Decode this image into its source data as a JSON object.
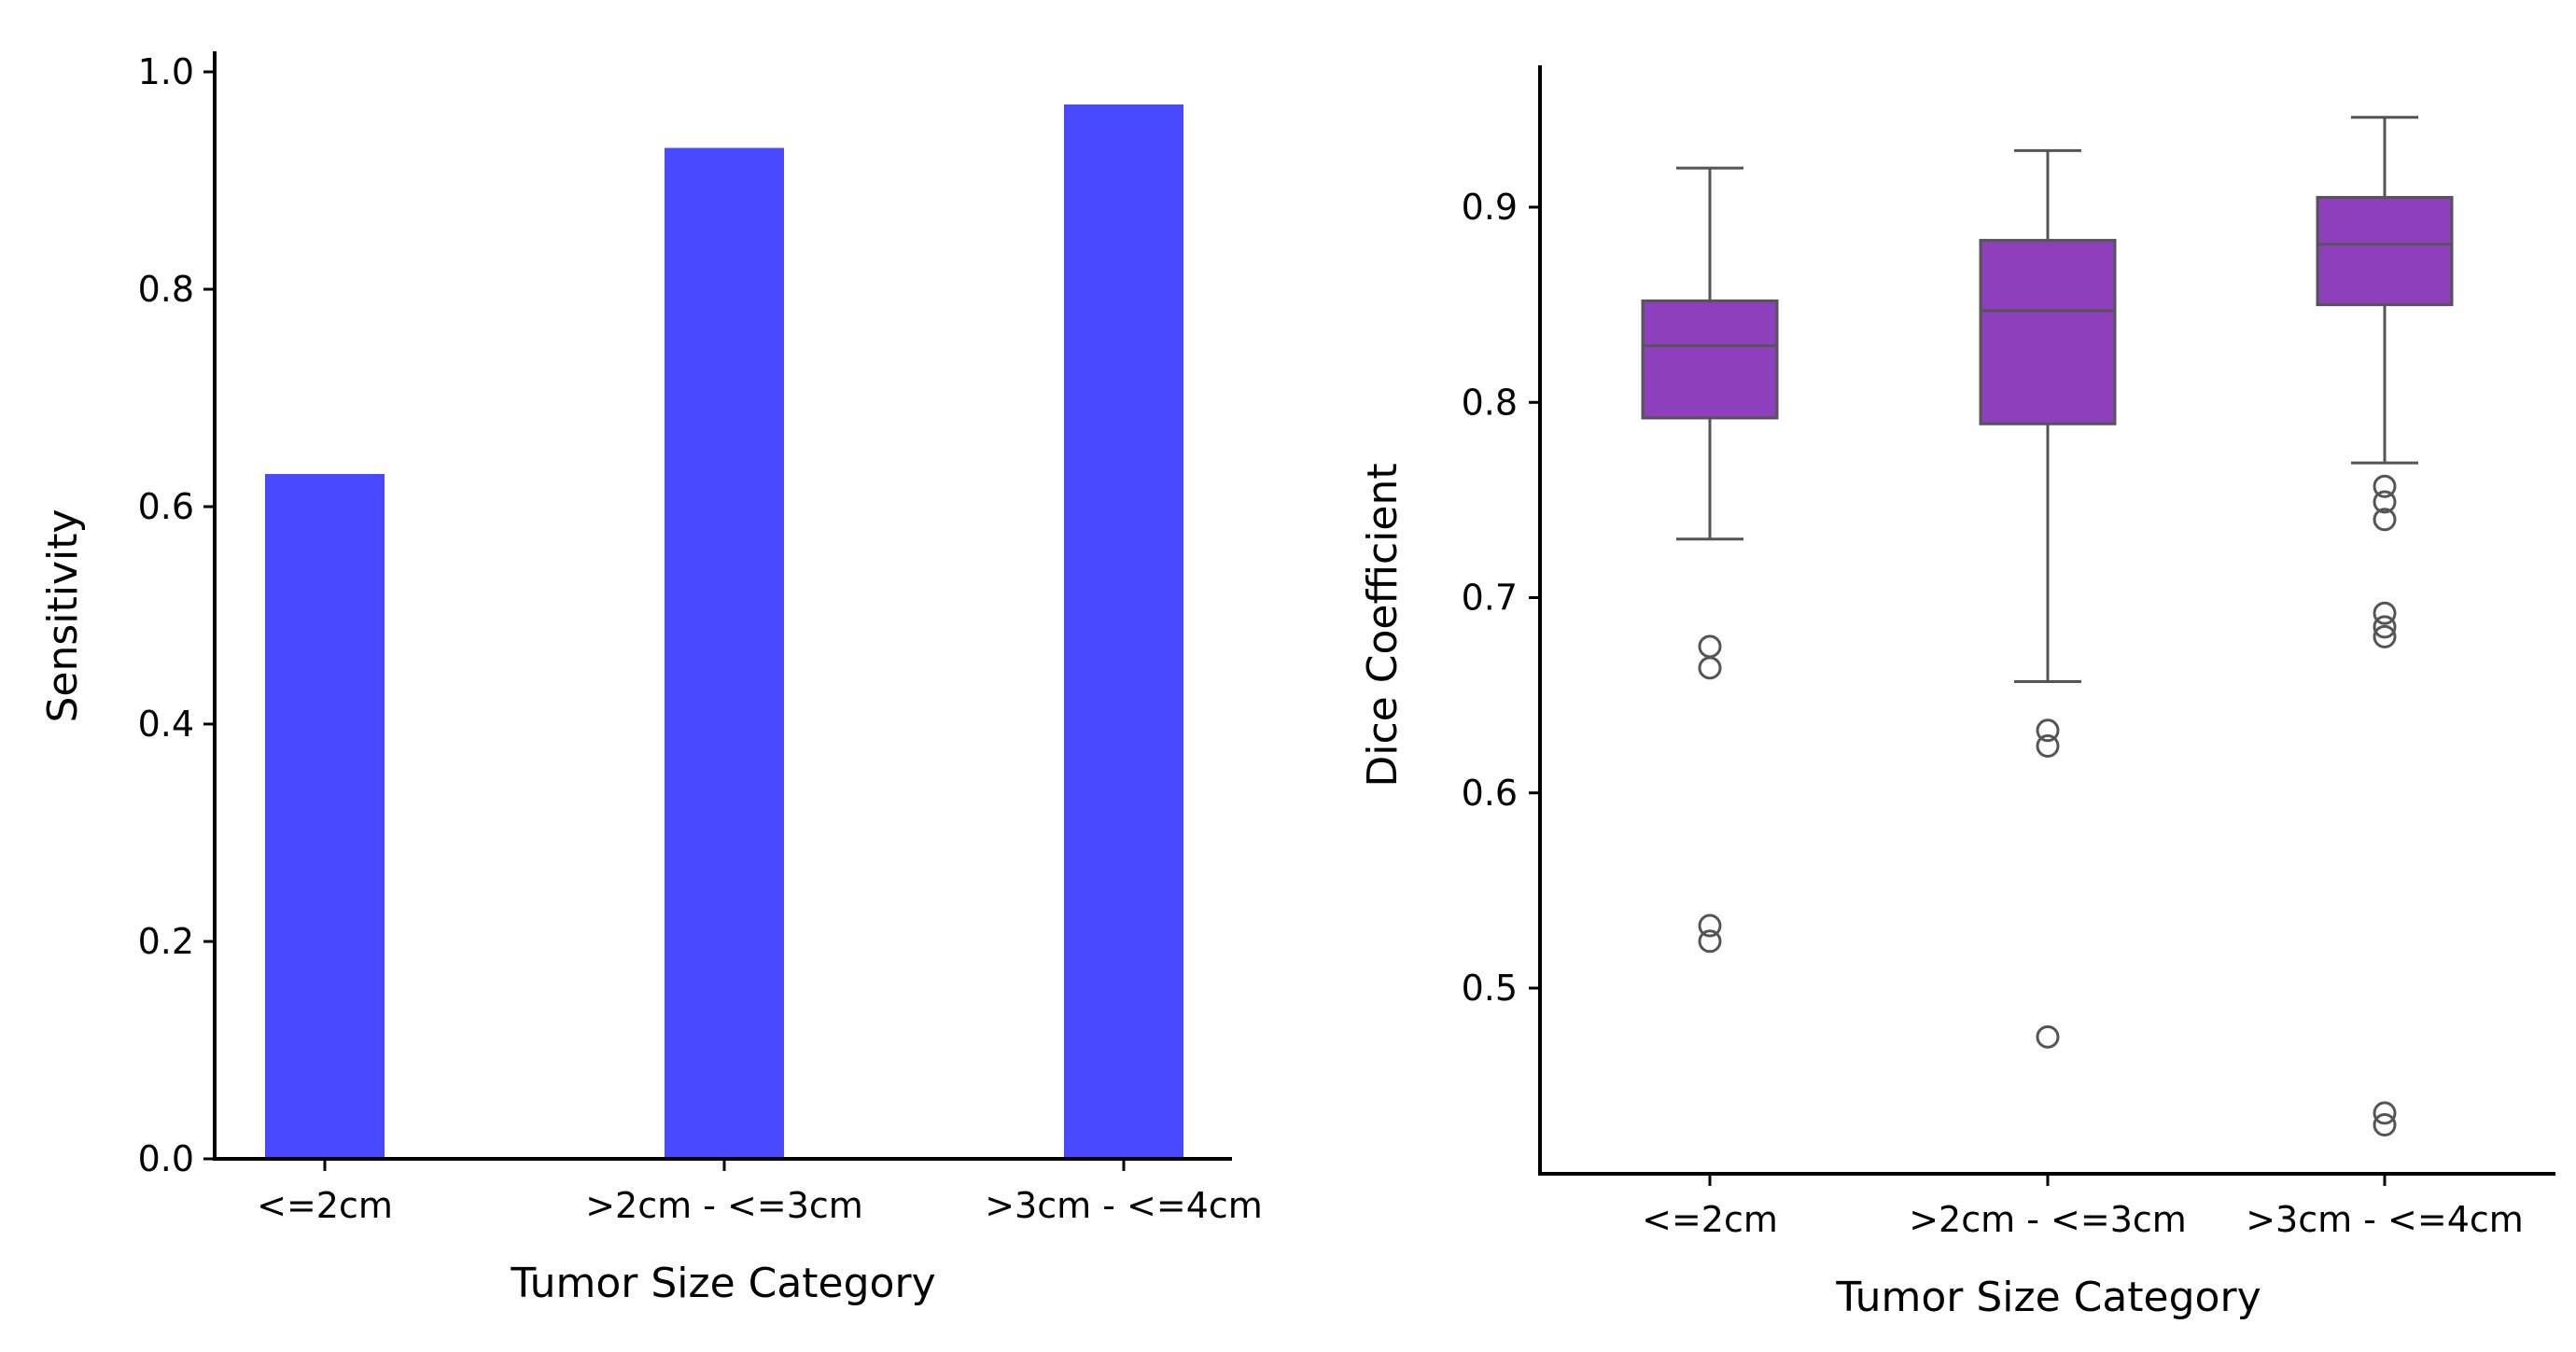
{
  "chart_data": [
    {
      "type": "bar",
      "title": "",
      "xlabel": "Tumor Size Category",
      "ylabel": "Sensitivity",
      "categories": [
        "<=2cm",
        ">2cm - <=3cm",
        ">3cm - <=4cm"
      ],
      "values": [
        0.63,
        0.93,
        0.97
      ],
      "ylim": [
        0.0,
        1.02
      ],
      "yticks": [
        0.0,
        0.2,
        0.4,
        0.6,
        0.8,
        1.0
      ],
      "ytick_labels": [
        "0.0",
        "0.2",
        "0.4",
        "0.6",
        "0.8",
        "1.0"
      ],
      "grid": false,
      "bar_color": "#4848ff"
    },
    {
      "type": "box",
      "title": "",
      "xlabel": "Tumor Size Category",
      "ylabel": "Dice Coefficient",
      "categories": [
        "<=2cm",
        ">2cm - <=3cm",
        ">3cm - <=4cm"
      ],
      "boxes": [
        {
          "category": "<=2cm",
          "whisker_low": 0.73,
          "q1": 0.792,
          "median": 0.829,
          "q3": 0.852,
          "whisker_high": 0.92,
          "outliers": [
            0.675,
            0.664,
            0.532,
            0.524
          ]
        },
        {
          "category": ">2cm - <=3cm",
          "whisker_low": 0.657,
          "q1": 0.789,
          "median": 0.847,
          "q3": 0.883,
          "whisker_high": 0.929,
          "outliers": [
            0.632,
            0.624,
            0.475
          ]
        },
        {
          "category": ">3cm - <=4cm",
          "whisker_low": 0.769,
          "q1": 0.85,
          "median": 0.881,
          "q3": 0.905,
          "whisker_high": 0.946,
          "outliers": [
            0.757,
            0.749,
            0.74,
            0.692,
            0.685,
            0.68,
            0.436,
            0.43
          ]
        }
      ],
      "ylim": [
        0.41,
        0.97
      ],
      "yticks": [
        0.5,
        0.6,
        0.7,
        0.8,
        0.9
      ],
      "ytick_labels": [
        "0.5",
        "0.6",
        "0.7",
        "0.8",
        "0.9"
      ],
      "grid": false,
      "box_color": "#8e3fbc",
      "line_color": "#555555"
    }
  ]
}
